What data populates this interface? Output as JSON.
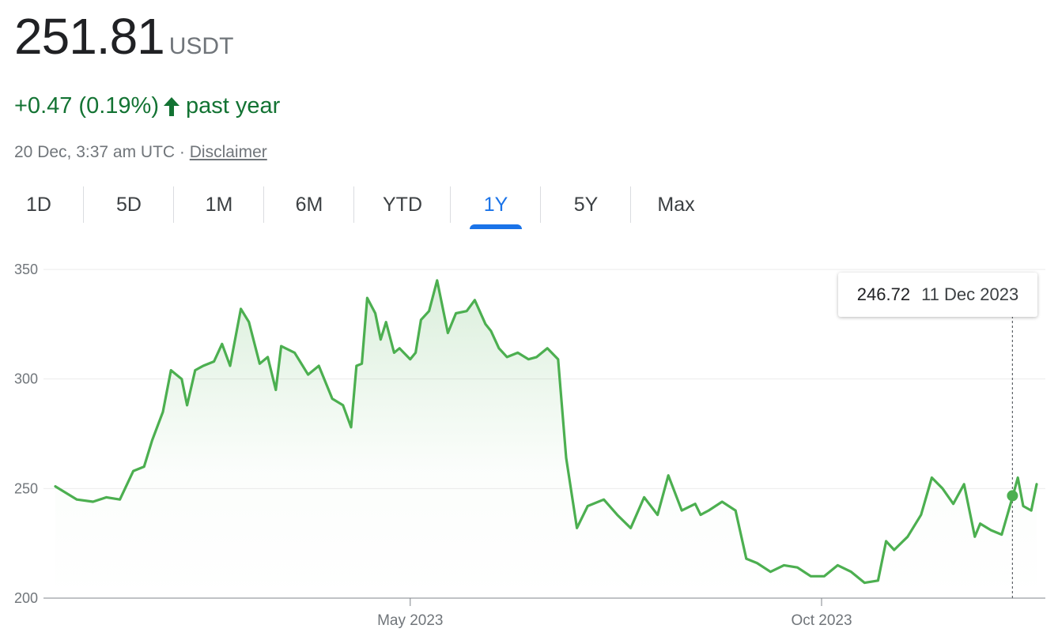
{
  "header": {
    "price": "251.81",
    "currency": "USDT",
    "change": "+0.47 (0.19%)",
    "change_period": "past year",
    "timestamp": "20 Dec, 3:37 am UTC ·",
    "disclaimer": "Disclaimer",
    "up_color": "#137333"
  },
  "tabs": [
    {
      "label": "1D",
      "active": false
    },
    {
      "label": "5D",
      "active": false
    },
    {
      "label": "1M",
      "active": false
    },
    {
      "label": "6M",
      "active": false
    },
    {
      "label": "YTD",
      "active": false
    },
    {
      "label": "1Y",
      "active": true
    },
    {
      "label": "5Y",
      "active": false
    },
    {
      "label": "Max",
      "active": false
    }
  ],
  "tooltip": {
    "value": "246.72",
    "date": "11 Dec 2023"
  },
  "chart_data": {
    "type": "area",
    "title": "",
    "xlabel": "",
    "ylabel": "",
    "ylim": [
      200,
      350
    ],
    "yticks": [
      200,
      250,
      300,
      350
    ],
    "xticks": [
      {
        "label": "May 2023",
        "date": "2023-05-01"
      },
      {
        "label": "Oct 2023",
        "date": "2023-10-01"
      }
    ],
    "xlim": [
      "2022-12-20",
      "2023-12-20"
    ],
    "grid": true,
    "line_color": "#4caf50",
    "highlight": {
      "date": "2023-12-11",
      "value": 246.72
    },
    "series": [
      {
        "x": [
          "2022-12-20",
          "2022-12-28",
          "2023-01-03",
          "2023-01-08",
          "2023-01-13",
          "2023-01-18",
          "2023-01-22",
          "2023-01-25",
          "2023-01-29",
          "2023-02-01",
          "2023-02-05",
          "2023-02-07",
          "2023-02-10",
          "2023-02-13",
          "2023-02-17",
          "2023-02-20",
          "2023-02-23",
          "2023-02-27",
          "2023-03-02",
          "2023-03-06",
          "2023-03-09",
          "2023-03-12",
          "2023-03-14",
          "2023-03-19",
          "2023-03-24",
          "2023-03-28",
          "2023-04-02",
          "2023-04-06",
          "2023-04-09",
          "2023-04-11",
          "2023-04-13",
          "2023-04-15",
          "2023-04-18",
          "2023-04-20",
          "2023-04-22",
          "2023-04-25",
          "2023-04-27",
          "2023-05-01",
          "2023-05-03",
          "2023-05-05",
          "2023-05-08",
          "2023-05-11",
          "2023-05-15",
          "2023-05-18",
          "2023-05-22",
          "2023-05-25",
          "2023-05-29",
          "2023-05-31",
          "2023-06-03",
          "2023-06-06",
          "2023-06-10",
          "2023-06-14",
          "2023-06-17",
          "2023-06-21",
          "2023-06-25",
          "2023-06-28",
          "2023-07-02",
          "2023-07-06",
          "2023-07-12",
          "2023-07-17",
          "2023-07-22",
          "2023-07-27",
          "2023-08-01",
          "2023-08-05",
          "2023-08-10",
          "2023-08-15",
          "2023-08-17",
          "2023-08-20",
          "2023-08-25",
          "2023-08-30",
          "2023-09-03",
          "2023-09-07",
          "2023-09-12",
          "2023-09-17",
          "2023-09-22",
          "2023-09-27",
          "2023-10-02",
          "2023-10-07",
          "2023-10-12",
          "2023-10-17",
          "2023-10-22",
          "2023-10-25",
          "2023-10-28",
          "2023-11-02",
          "2023-11-07",
          "2023-11-11",
          "2023-11-15",
          "2023-11-19",
          "2023-11-23",
          "2023-11-27",
          "2023-11-29",
          "2023-12-03",
          "2023-12-07",
          "2023-12-11",
          "2023-12-13",
          "2023-12-15",
          "2023-12-18",
          "2023-12-20"
        ],
        "values": [
          251,
          245,
          244,
          246,
          245,
          258,
          260,
          272,
          285,
          304,
          300,
          288,
          304,
          306,
          308,
          316,
          306,
          332,
          326,
          307,
          310,
          295,
          315,
          312,
          302,
          306,
          291,
          288,
          278,
          306,
          307,
          337,
          330,
          318,
          326,
          312,
          314,
          309,
          312,
          327,
          331,
          345,
          321,
          330,
          331,
          336,
          325,
          322,
          314,
          310,
          312,
          309,
          310,
          314,
          309,
          264,
          232,
          242,
          245,
          238,
          232,
          246,
          238,
          256,
          240,
          243,
          238,
          240,
          244,
          240,
          218,
          216,
          212,
          215,
          214,
          210,
          210,
          215,
          212,
          207,
          208,
          226,
          222,
          228,
          238,
          255,
          250,
          243,
          252,
          228,
          234,
          231,
          229,
          246,
          255,
          242,
          240,
          252
        ]
      }
    ]
  }
}
